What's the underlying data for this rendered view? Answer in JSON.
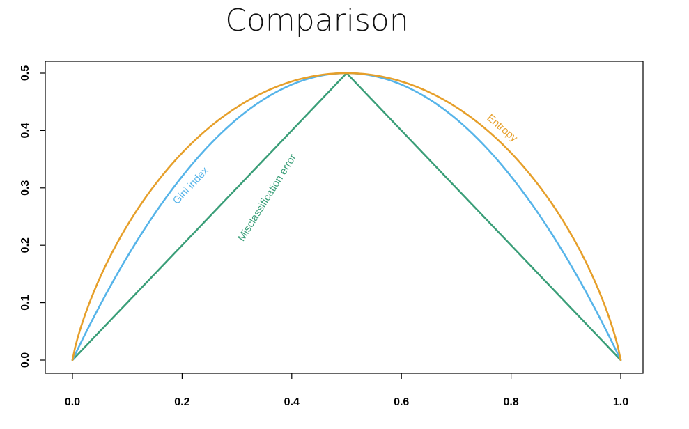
{
  "page": {
    "title": "Comparison"
  },
  "chart_data": {
    "type": "line",
    "title": "Comparison",
    "xlabel": "",
    "ylabel": "",
    "xlim": [
      0.0,
      1.0
    ],
    "ylim": [
      0.0,
      0.5
    ],
    "x_ticks": [
      "0.0",
      "0.2",
      "0.4",
      "0.6",
      "0.8",
      "1.0"
    ],
    "y_ticks": [
      "0.0",
      "0.1",
      "0.2",
      "0.3",
      "0.4",
      "0.5"
    ],
    "x_tick_values": [
      0.0,
      0.2,
      0.4,
      0.6,
      0.8,
      1.0
    ],
    "y_tick_values": [
      0.0,
      0.1,
      0.2,
      0.3,
      0.4,
      0.5
    ],
    "grid": false,
    "legend": "none",
    "series": [
      {
        "name": "Entropy",
        "color": "#E69F2A",
        "x": [
          0.0,
          0.05,
          0.1,
          0.15,
          0.2,
          0.25,
          0.3,
          0.35,
          0.4,
          0.45,
          0.5,
          0.55,
          0.6,
          0.65,
          0.7,
          0.75,
          0.8,
          0.85,
          0.9,
          0.95,
          1.0
        ],
        "values": [
          0.0,
          0.143,
          0.234,
          0.305,
          0.361,
          0.406,
          0.441,
          0.467,
          0.485,
          0.496,
          0.5,
          0.496,
          0.485,
          0.467,
          0.441,
          0.406,
          0.361,
          0.305,
          0.234,
          0.143,
          0.0
        ]
      },
      {
        "name": "Gini index",
        "color": "#56B4E9",
        "x": [
          0.0,
          0.05,
          0.1,
          0.15,
          0.2,
          0.25,
          0.3,
          0.35,
          0.4,
          0.45,
          0.5,
          0.55,
          0.6,
          0.65,
          0.7,
          0.75,
          0.8,
          0.85,
          0.9,
          0.95,
          1.0
        ],
        "values": [
          0.0,
          0.095,
          0.18,
          0.255,
          0.32,
          0.375,
          0.42,
          0.455,
          0.48,
          0.495,
          0.5,
          0.495,
          0.48,
          0.455,
          0.42,
          0.375,
          0.32,
          0.255,
          0.18,
          0.095,
          0.0
        ]
      },
      {
        "name": "Misclassification error",
        "color": "#3A9E78",
        "x": [
          0.0,
          0.5,
          1.0
        ],
        "values": [
          0.0,
          0.5,
          0.0
        ]
      }
    ],
    "annotations": [
      {
        "text": "Entropy",
        "series": "Entropy",
        "x": 0.78,
        "y": 0.4,
        "angle": 40
      },
      {
        "text": "Gini index",
        "series": "Gini index",
        "x": 0.22,
        "y": 0.3,
        "angle": -47
      },
      {
        "text": "Misclassification error",
        "series": "Misclassification error",
        "x": 0.36,
        "y": 0.28,
        "angle": -58
      }
    ]
  }
}
